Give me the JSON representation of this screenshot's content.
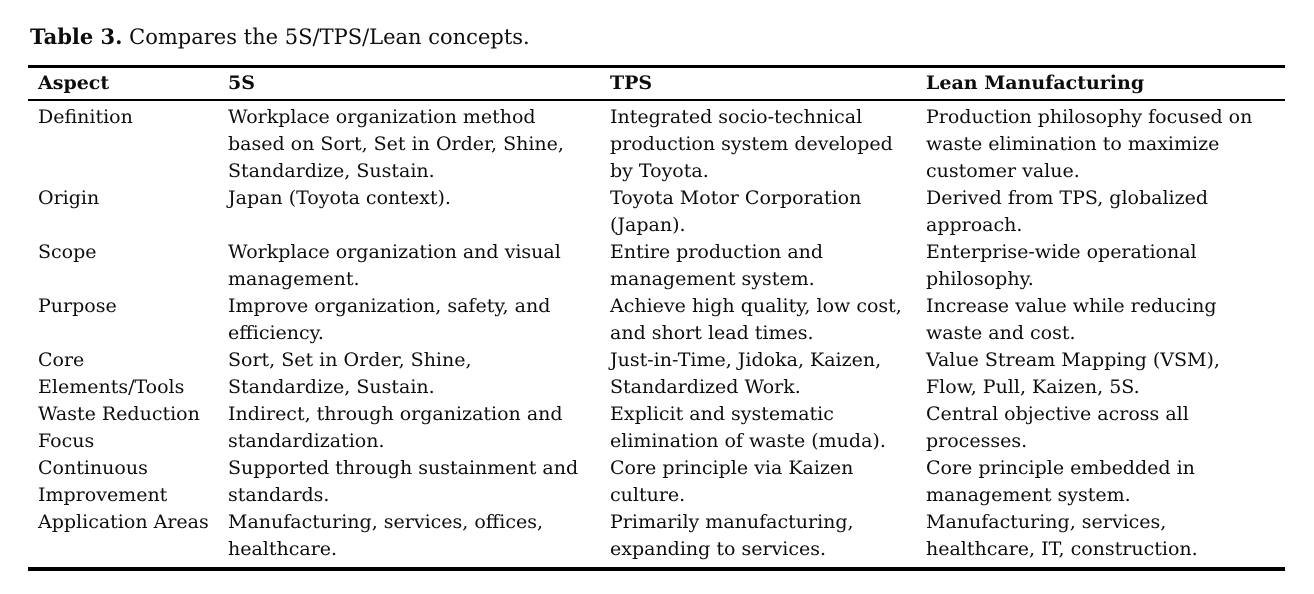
{
  "caption": {
    "label": "Table 3.",
    "text": "Compares the 5S/TPS/Lean concepts."
  },
  "table": {
    "headers": [
      "Aspect",
      "5S",
      "TPS",
      "Lean Manufacturing"
    ],
    "rows": [
      [
        "Definition",
        "Workplace organization method based on Sort, Set in Order, Shine, Standardize, Sustain.",
        "Integrated socio-technical production system developed by Toyota.",
        "Production philosophy focused on waste elimination to maximize customer value."
      ],
      [
        "Origin",
        "Japan (Toyota context).",
        "Toyota Motor Corporation (Japan).",
        "Derived from TPS, globalized approach."
      ],
      [
        "Scope",
        "Workplace organization and visual management.",
        "Entire production and management system.",
        "Enterprise-wide operational philosophy."
      ],
      [
        "Purpose",
        "Improve organization, safety, and efficiency.",
        "Achieve high quality, low cost, and short lead times.",
        "Increase value while reducing waste and cost."
      ],
      [
        "Core Elements/Tools",
        "Sort, Set in Order, Shine, Standardize, Sustain.",
        "Just-in-Time, Jidoka, Kaizen, Standardized Work.",
        "Value Stream Mapping (VSM), Flow, Pull, Kaizen, 5S."
      ],
      [
        "Waste Reduction Focus",
        "Indirect, through organization and standardization.",
        "Explicit and systematic elimination of waste (muda).",
        "Central objective across all processes."
      ],
      [
        "Continuous Improvement",
        "Supported through sustainment and standards.",
        "Core principle via Kaizen culture.",
        "Core principle embedded in management system."
      ],
      [
        "Application Areas",
        "Manufacturing, services, offices, healthcare.",
        "Primarily manufacturing, expanding to services.",
        "Manufacturing, services, healthcare, IT, construction."
      ]
    ]
  },
  "colors": {
    "text": "#0d0d0d",
    "rule": "#000000",
    "background": "#ffffff"
  }
}
